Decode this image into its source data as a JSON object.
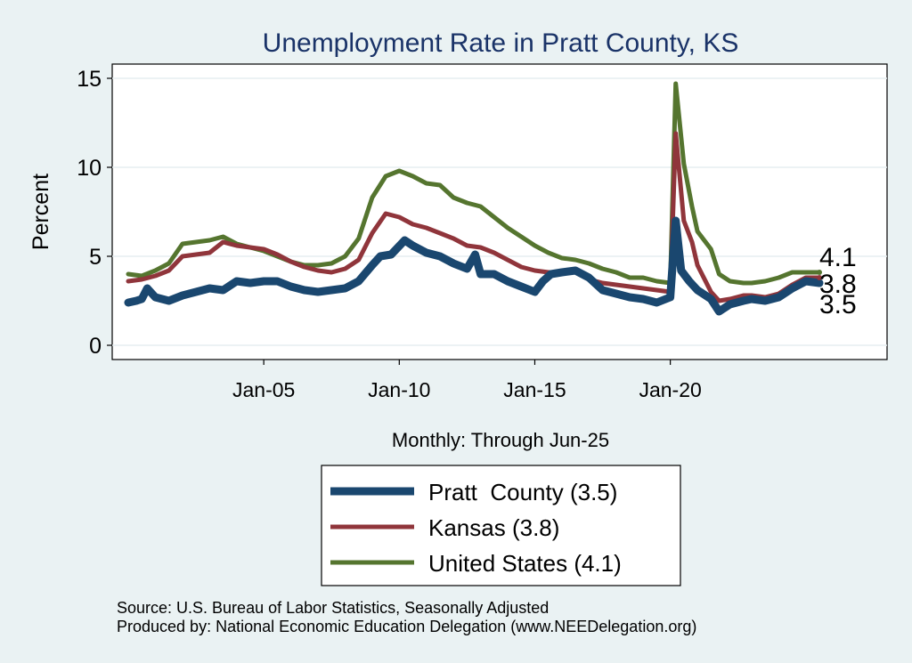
{
  "chart_data": {
    "type": "line",
    "title": "Unemployment Rate in Pratt  County, KS",
    "xlabel": "Monthly: Through Jun-25",
    "ylabel": "Percent",
    "xlim": [
      2000.0,
      2025.5
    ],
    "ylim": [
      0,
      15
    ],
    "x_ticks": [
      {
        "value": 2005.0,
        "label": "Jan-05"
      },
      {
        "value": 2010.0,
        "label": "Jan-10"
      },
      {
        "value": 2015.0,
        "label": "Jan-15"
      },
      {
        "value": 2020.0,
        "label": "Jan-20"
      }
    ],
    "y_ticks": [
      {
        "value": 0,
        "label": "0"
      },
      {
        "value": 5,
        "label": "5"
      },
      {
        "value": 10,
        "label": "10"
      },
      {
        "value": 15,
        "label": "15"
      }
    ],
    "grid": "horizontal",
    "legend_position": "bottom",
    "series": [
      {
        "name": "Pratt  County (3.5)",
        "color": "#1a476f",
        "end_label": "3.5",
        "points": [
          [
            2000.0,
            2.4
          ],
          [
            2000.3,
            2.5
          ],
          [
            2000.5,
            2.6
          ],
          [
            2000.7,
            3.2
          ],
          [
            2001.0,
            2.7
          ],
          [
            2001.5,
            2.5
          ],
          [
            2002.0,
            2.8
          ],
          [
            2002.5,
            3.0
          ],
          [
            2003.0,
            3.2
          ],
          [
            2003.5,
            3.1
          ],
          [
            2004.0,
            3.6
          ],
          [
            2004.5,
            3.5
          ],
          [
            2005.0,
            3.6
          ],
          [
            2005.5,
            3.6
          ],
          [
            2006.0,
            3.3
          ],
          [
            2006.5,
            3.1
          ],
          [
            2007.0,
            3.0
          ],
          [
            2007.5,
            3.1
          ],
          [
            2008.0,
            3.2
          ],
          [
            2008.5,
            3.6
          ],
          [
            2009.0,
            4.5
          ],
          [
            2009.3,
            5.0
          ],
          [
            2009.7,
            5.1
          ],
          [
            2010.2,
            5.9
          ],
          [
            2010.5,
            5.6
          ],
          [
            2011.0,
            5.2
          ],
          [
            2011.5,
            5.0
          ],
          [
            2012.0,
            4.6
          ],
          [
            2012.5,
            4.3
          ],
          [
            2012.8,
            5.1
          ],
          [
            2013.0,
            4.0
          ],
          [
            2013.5,
            4.0
          ],
          [
            2014.0,
            3.6
          ],
          [
            2014.5,
            3.3
          ],
          [
            2015.0,
            3.0
          ],
          [
            2015.3,
            3.6
          ],
          [
            2015.6,
            4.0
          ],
          [
            2016.0,
            4.1
          ],
          [
            2016.5,
            4.2
          ],
          [
            2017.0,
            3.8
          ],
          [
            2017.5,
            3.1
          ],
          [
            2018.0,
            2.9
          ],
          [
            2018.5,
            2.7
          ],
          [
            2019.0,
            2.6
          ],
          [
            2019.5,
            2.4
          ],
          [
            2020.0,
            2.7
          ],
          [
            2020.2,
            7.0
          ],
          [
            2020.4,
            4.2
          ],
          [
            2020.7,
            3.6
          ],
          [
            2021.0,
            3.1
          ],
          [
            2021.5,
            2.6
          ],
          [
            2021.8,
            1.9
          ],
          [
            2022.2,
            2.3
          ],
          [
            2022.7,
            2.5
          ],
          [
            2023.0,
            2.6
          ],
          [
            2023.5,
            2.5
          ],
          [
            2024.0,
            2.7
          ],
          [
            2024.5,
            3.2
          ],
          [
            2025.0,
            3.6
          ],
          [
            2025.5,
            3.5
          ]
        ]
      },
      {
        "name": "Kansas (3.8)",
        "color": "#90353b",
        "end_label": "3.8",
        "points": [
          [
            2000.0,
            3.6
          ],
          [
            2000.5,
            3.7
          ],
          [
            2001.0,
            3.9
          ],
          [
            2001.5,
            4.2
          ],
          [
            2002.0,
            5.0
          ],
          [
            2002.5,
            5.1
          ],
          [
            2003.0,
            5.2
          ],
          [
            2003.5,
            5.8
          ],
          [
            2004.0,
            5.6
          ],
          [
            2004.5,
            5.5
          ],
          [
            2005.0,
            5.4
          ],
          [
            2005.5,
            5.1
          ],
          [
            2006.0,
            4.7
          ],
          [
            2006.5,
            4.4
          ],
          [
            2007.0,
            4.2
          ],
          [
            2007.5,
            4.1
          ],
          [
            2008.0,
            4.3
          ],
          [
            2008.5,
            4.8
          ],
          [
            2009.0,
            6.3
          ],
          [
            2009.5,
            7.4
          ],
          [
            2010.0,
            7.2
          ],
          [
            2010.5,
            6.8
          ],
          [
            2011.0,
            6.6
          ],
          [
            2011.5,
            6.3
          ],
          [
            2012.0,
            6.0
          ],
          [
            2012.5,
            5.6
          ],
          [
            2013.0,
            5.5
          ],
          [
            2013.5,
            5.2
          ],
          [
            2014.0,
            4.8
          ],
          [
            2014.5,
            4.4
          ],
          [
            2015.0,
            4.2
          ],
          [
            2015.5,
            4.1
          ],
          [
            2016.0,
            4.1
          ],
          [
            2016.5,
            4.1
          ],
          [
            2017.0,
            3.7
          ],
          [
            2017.5,
            3.5
          ],
          [
            2018.0,
            3.4
          ],
          [
            2018.5,
            3.3
          ],
          [
            2019.0,
            3.2
          ],
          [
            2019.5,
            3.1
          ],
          [
            2020.0,
            3.0
          ],
          [
            2020.2,
            11.9
          ],
          [
            2020.5,
            7.0
          ],
          [
            2020.8,
            5.8
          ],
          [
            2021.0,
            4.5
          ],
          [
            2021.5,
            3.0
          ],
          [
            2021.8,
            2.5
          ],
          [
            2022.2,
            2.6
          ],
          [
            2022.7,
            2.8
          ],
          [
            2023.0,
            2.8
          ],
          [
            2023.5,
            2.7
          ],
          [
            2024.0,
            2.9
          ],
          [
            2024.5,
            3.4
          ],
          [
            2025.0,
            3.8
          ],
          [
            2025.5,
            3.8
          ]
        ]
      },
      {
        "name": "United States (4.1)",
        "color": "#55752f",
        "end_label": "4.1",
        "points": [
          [
            2000.0,
            4.0
          ],
          [
            2000.5,
            3.9
          ],
          [
            2001.0,
            4.2
          ],
          [
            2001.5,
            4.6
          ],
          [
            2002.0,
            5.7
          ],
          [
            2002.5,
            5.8
          ],
          [
            2003.0,
            5.9
          ],
          [
            2003.5,
            6.1
          ],
          [
            2004.0,
            5.7
          ],
          [
            2004.5,
            5.5
          ],
          [
            2005.0,
            5.3
          ],
          [
            2005.5,
            5.0
          ],
          [
            2006.0,
            4.7
          ],
          [
            2006.5,
            4.5
          ],
          [
            2007.0,
            4.5
          ],
          [
            2007.5,
            4.6
          ],
          [
            2008.0,
            5.0
          ],
          [
            2008.5,
            6.0
          ],
          [
            2009.0,
            8.3
          ],
          [
            2009.5,
            9.5
          ],
          [
            2010.0,
            9.8
          ],
          [
            2010.5,
            9.5
          ],
          [
            2011.0,
            9.1
          ],
          [
            2011.5,
            9.0
          ],
          [
            2012.0,
            8.3
          ],
          [
            2012.5,
            8.0
          ],
          [
            2013.0,
            7.8
          ],
          [
            2013.5,
            7.2
          ],
          [
            2014.0,
            6.6
          ],
          [
            2014.5,
            6.1
          ],
          [
            2015.0,
            5.6
          ],
          [
            2015.5,
            5.2
          ],
          [
            2016.0,
            4.9
          ],
          [
            2016.5,
            4.8
          ],
          [
            2017.0,
            4.6
          ],
          [
            2017.5,
            4.3
          ],
          [
            2018.0,
            4.1
          ],
          [
            2018.5,
            3.8
          ],
          [
            2019.0,
            3.8
          ],
          [
            2019.5,
            3.6
          ],
          [
            2020.0,
            3.5
          ],
          [
            2020.2,
            14.7
          ],
          [
            2020.5,
            10.2
          ],
          [
            2020.8,
            7.8
          ],
          [
            2021.0,
            6.4
          ],
          [
            2021.5,
            5.4
          ],
          [
            2021.8,
            4.0
          ],
          [
            2022.2,
            3.6
          ],
          [
            2022.7,
            3.5
          ],
          [
            2023.0,
            3.5
          ],
          [
            2023.5,
            3.6
          ],
          [
            2024.0,
            3.8
          ],
          [
            2024.5,
            4.1
          ],
          [
            2025.0,
            4.1
          ],
          [
            2025.5,
            4.1
          ]
        ]
      }
    ],
    "source_lines": [
      "Source: U.S. Bureau of Labor Statistics, Seasonally Adjusted",
      "Produced by: National Economic Education Delegation (www.NEEDelegation.org)"
    ]
  }
}
